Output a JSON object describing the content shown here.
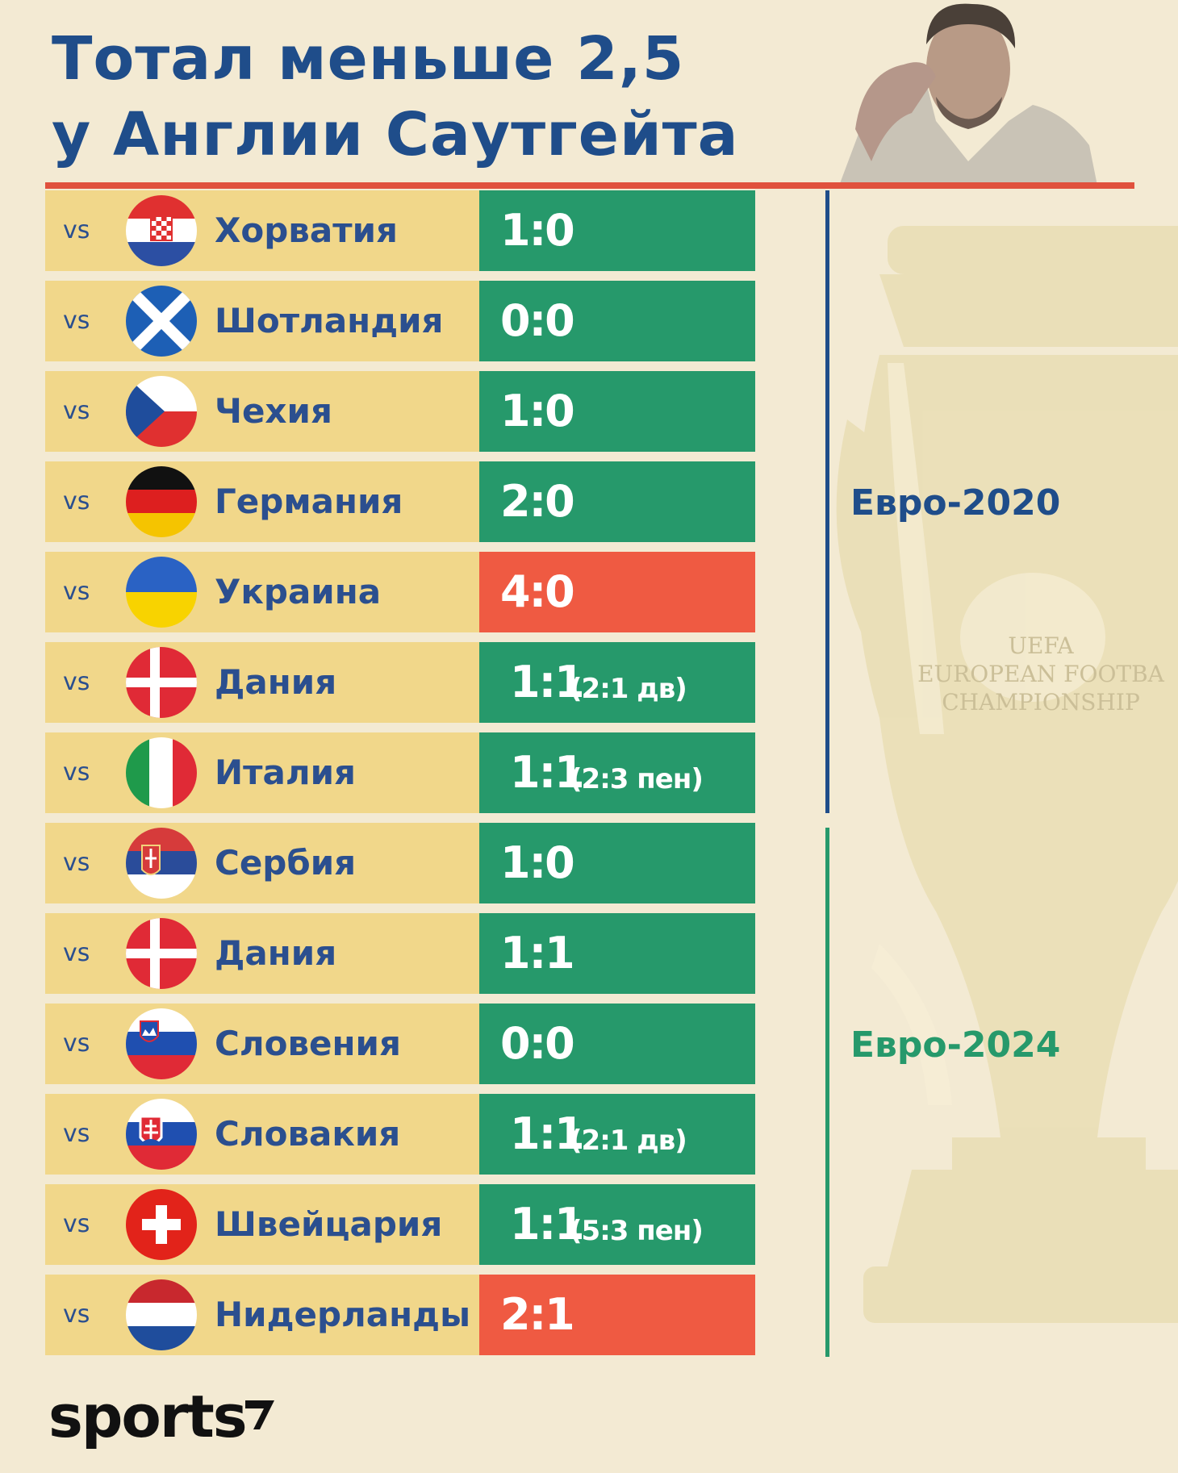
{
  "title": {
    "line1": "Тотал меньше 2,5",
    "line2": "у Англии Саутгейта"
  },
  "colors": {
    "background": "#f3ead3",
    "title_blue": "#1f4d8a",
    "accent_red": "#e0513d",
    "row_yellow": "#f1d78a",
    "win_green": "#26996b",
    "loss_red": "#ef5a42"
  },
  "matches": [
    {
      "vs": "vs",
      "team": "Хорватия",
      "score": "1:0",
      "note": "",
      "result_color": "green",
      "flag_icon": "croatia-flag-icon"
    },
    {
      "vs": "vs",
      "team": "Шотландия",
      "score": "0:0",
      "note": "",
      "result_color": "green",
      "flag_icon": "scotland-flag-icon"
    },
    {
      "vs": "vs",
      "team": "Чехия",
      "score": "1:0",
      "note": "",
      "result_color": "green",
      "flag_icon": "czechia-flag-icon"
    },
    {
      "vs": "vs",
      "team": "Германия",
      "score": "2:0",
      "note": "",
      "result_color": "green",
      "flag_icon": "germany-flag-icon"
    },
    {
      "vs": "vs",
      "team": "Украина",
      "score": "4:0",
      "note": "",
      "result_color": "red",
      "flag_icon": "ukraine-flag-icon"
    },
    {
      "vs": "vs",
      "team": "Дания",
      "score": "1:1",
      "note": "(2:1 дв)",
      "result_color": "green",
      "flag_icon": "denmark-flag-icon"
    },
    {
      "vs": "vs",
      "team": "Италия",
      "score": "1:1",
      "note": "(2:3 пен)",
      "result_color": "green",
      "flag_icon": "italy-flag-icon"
    },
    {
      "vs": "vs",
      "team": "Сербия",
      "score": "1:0",
      "note": "",
      "result_color": "green",
      "flag_icon": "serbia-flag-icon"
    },
    {
      "vs": "vs",
      "team": "Дания",
      "score": "1:1",
      "note": "",
      "result_color": "green",
      "flag_icon": "denmark-flag-icon"
    },
    {
      "vs": "vs",
      "team": "Словения",
      "score": "0:0",
      "note": "",
      "result_color": "green",
      "flag_icon": "slovenia-flag-icon"
    },
    {
      "vs": "vs",
      "team": "Словакия",
      "score": "1:1",
      "note": "(2:1 дв)",
      "result_color": "green",
      "flag_icon": "slovakia-flag-icon"
    },
    {
      "vs": "vs",
      "team": "Швейцария",
      "score": "1:1",
      "note": "(5:3 пен)",
      "result_color": "green",
      "flag_icon": "switzerland-flag-icon"
    },
    {
      "vs": "vs",
      "team": "Нидерланды",
      "score": "2:1",
      "note": "",
      "result_color": "red",
      "flag_icon": "netherlands-flag-icon"
    }
  ],
  "tournaments": {
    "euro2020": "Евро-2020",
    "euro2024": "Евро-2024"
  },
  "trophy_text": {
    "line1": "UEFA",
    "line2": "EUROPEAN FOOTBA",
    "line3": "CHAMPIONSHIP"
  },
  "logo": {
    "text": "sports"
  }
}
